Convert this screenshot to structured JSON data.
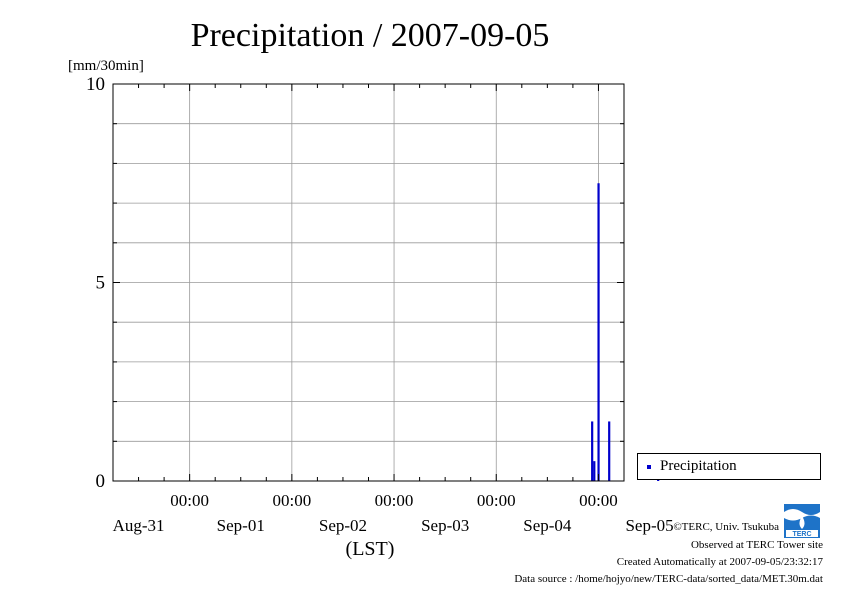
{
  "chart_data": {
    "type": "bar",
    "title": "Precipitation / 2007-09-05",
    "ylabel": "[mm/30min]",
    "xlabel": "(LST)",
    "ylim": [
      0,
      10
    ],
    "y_ticks": [
      0,
      5,
      10
    ],
    "x_range_hours": [
      -114,
      6
    ],
    "x_major_ticks": [
      {
        "hour": -96,
        "time": "00:00",
        "date": ""
      },
      {
        "hour": -72,
        "time": "00:00",
        "date": ""
      },
      {
        "hour": -48,
        "time": "00:00",
        "date": ""
      },
      {
        "hour": -24,
        "time": "00:00",
        "date": ""
      },
      {
        "hour": 0,
        "time": "00:00",
        "date": ""
      }
    ],
    "x_date_labels": [
      {
        "hour": -108,
        "label": "Aug-31"
      },
      {
        "hour": -84,
        "label": "Sep-01"
      },
      {
        "hour": -60,
        "label": "Sep-02"
      },
      {
        "hour": -36,
        "label": "Sep-03"
      },
      {
        "hour": -12,
        "label": "Sep-04"
      },
      {
        "hour": 12,
        "label": "Sep-05"
      }
    ],
    "grid": true,
    "legend_position": "bottom-right",
    "series": [
      {
        "name": "Precipitation",
        "color": "#0000cc",
        "points": [
          {
            "hour": -1.5,
            "value": 1.5
          },
          {
            "hour": -1.0,
            "value": 0.5
          },
          {
            "hour": 0.0,
            "value": 7.5
          },
          {
            "hour": 2.5,
            "value": 1.5
          },
          {
            "hour": 14.0,
            "value": 0.5
          }
        ]
      }
    ]
  },
  "credits": {
    "copyright": "©TERC, Univ. Tsukuba",
    "observed": "Observed at TERC Tower site",
    "created": "Created Automatically at 2007-09-05/23:32:17",
    "source": "Data source : /home/hojyo/new/TERC-data/sorted_data/MET.30m.dat",
    "logo_text": "TERC"
  }
}
